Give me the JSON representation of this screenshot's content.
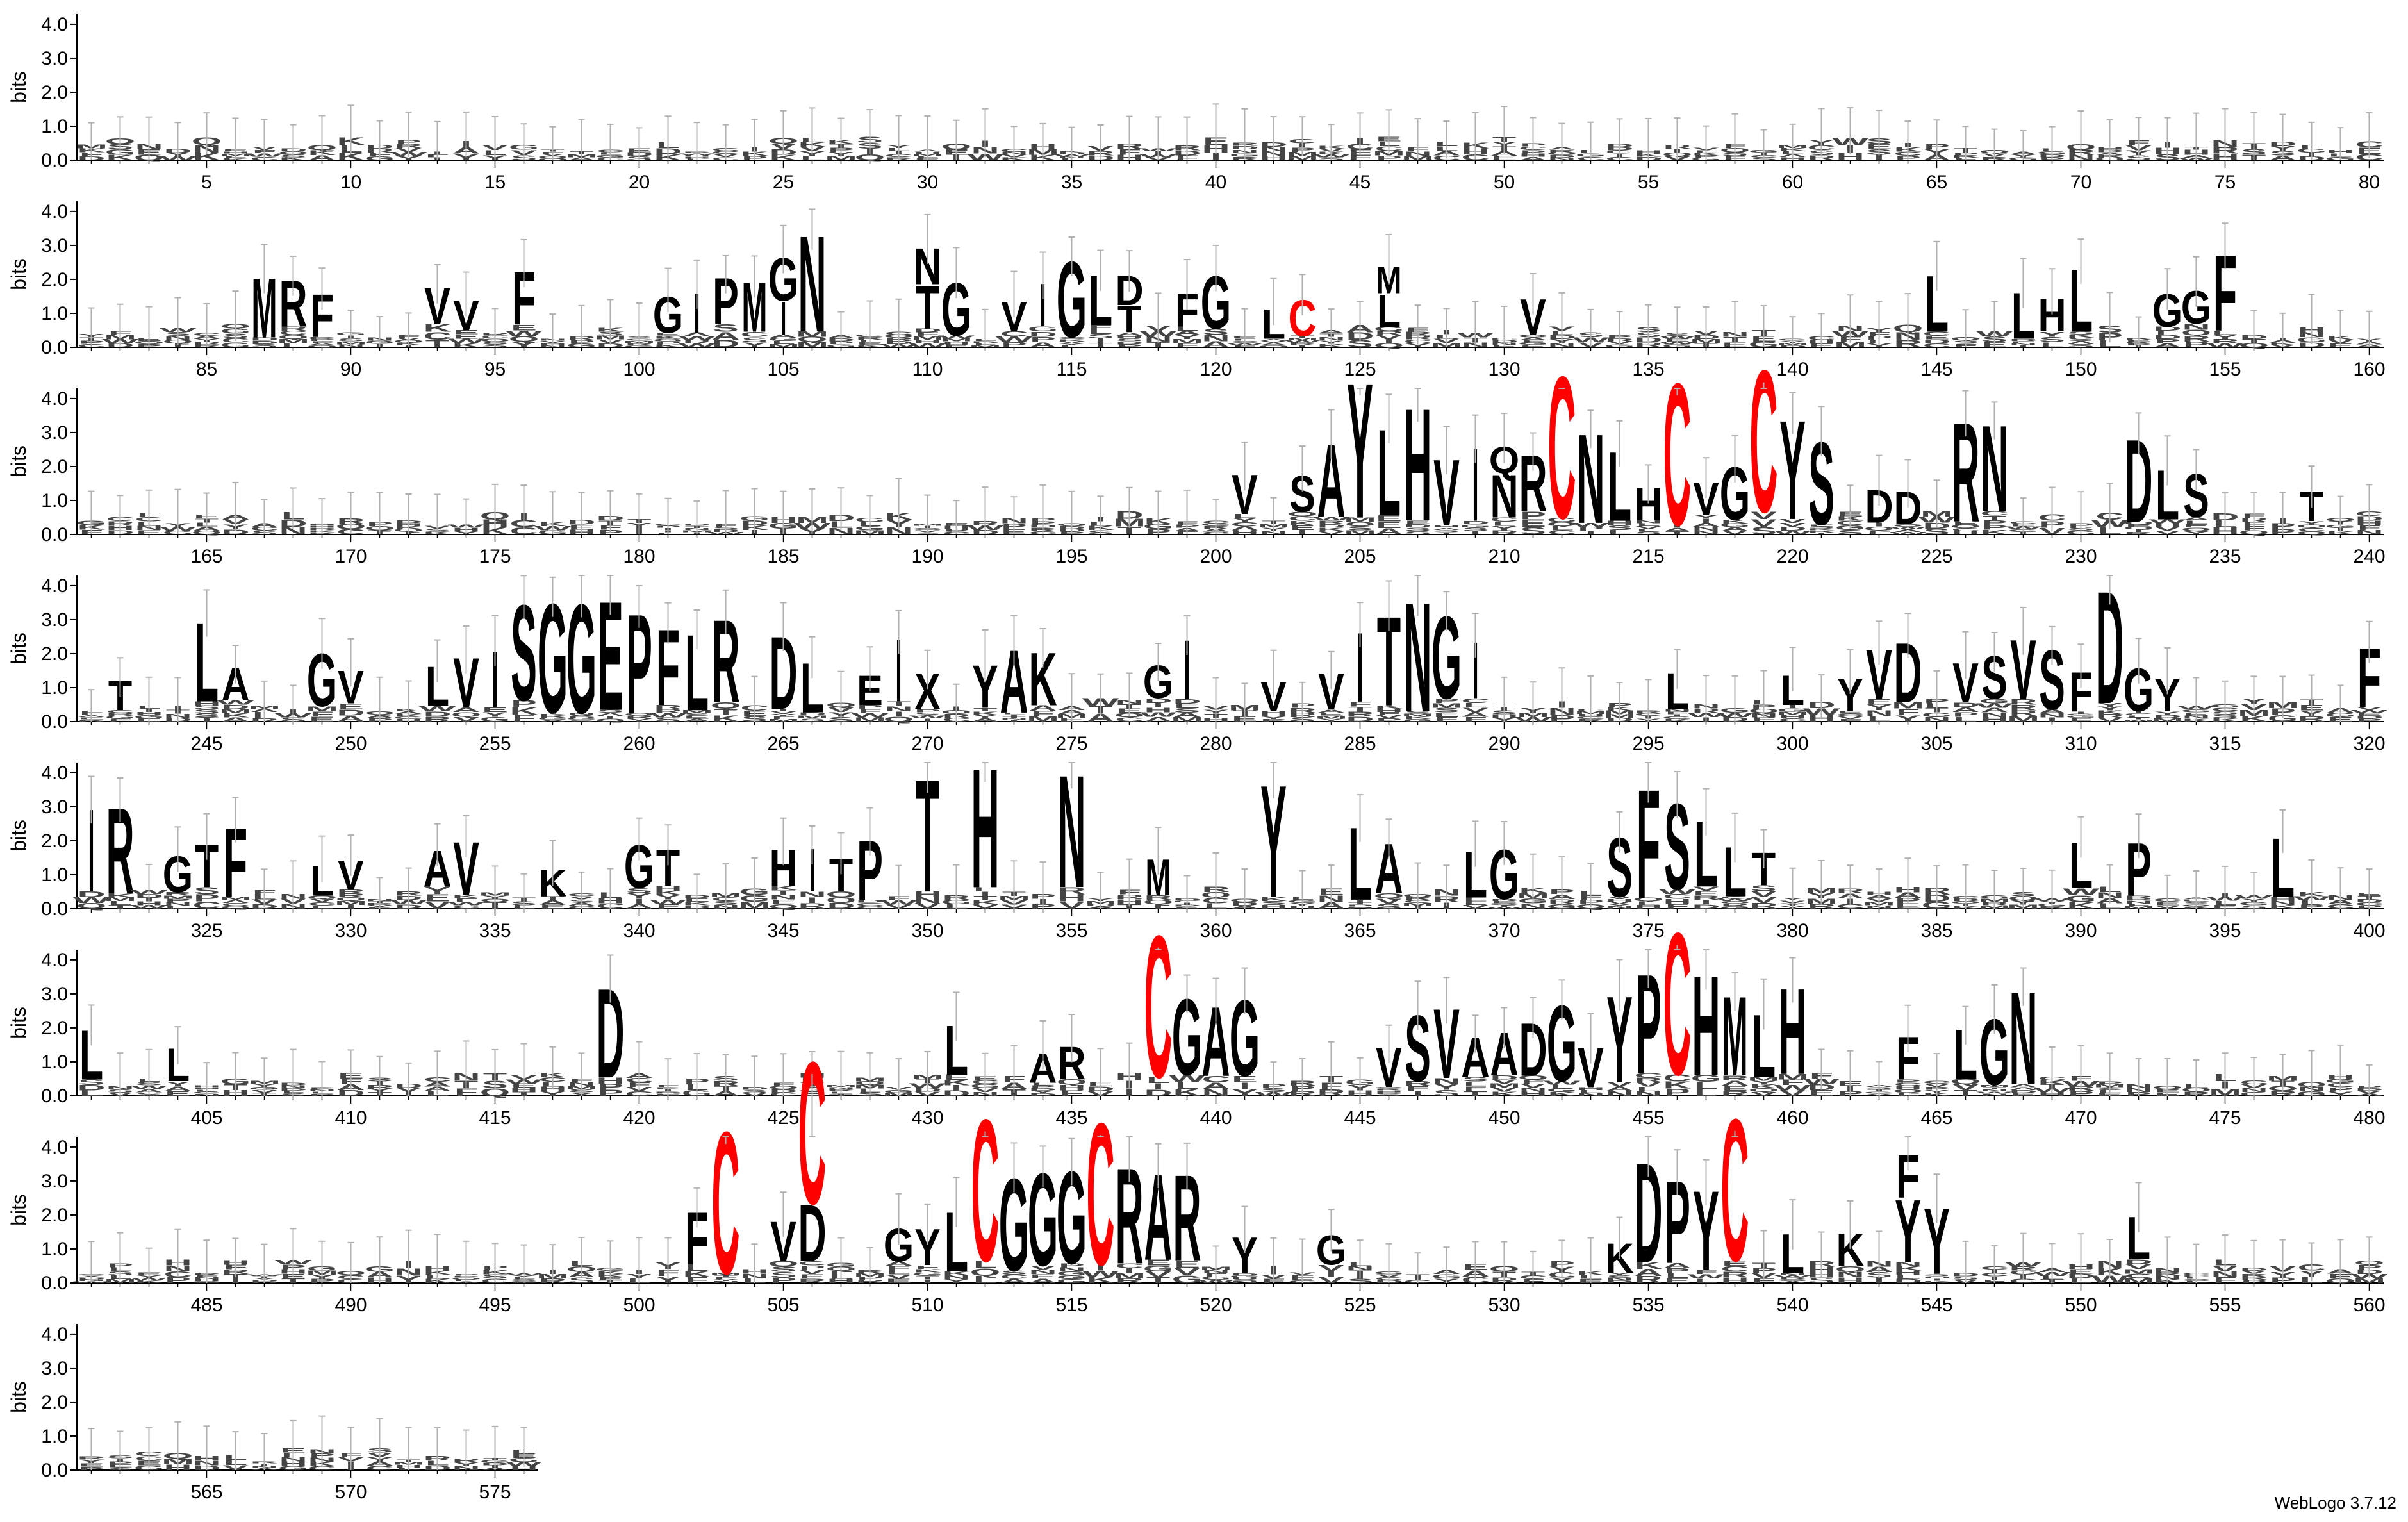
{
  "chart_data": {
    "type": "sequence-logo",
    "ylabel": "bits",
    "ylim": [
      0,
      4.3
    ],
    "yticks": [
      "0.0",
      "1.0",
      "2.0",
      "3.0",
      "4.0"
    ],
    "positions_per_row": 80,
    "total_positions": 576,
    "xtick_step": 5,
    "colors": {
      "default": "#000000",
      "cysteine": "#ff0000",
      "errorbar": "#b0b0b0"
    },
    "columns": [
      {
        "pos": 87,
        "letter": "M",
        "height": 1.8
      },
      {
        "pos": 88,
        "letter": "R",
        "height": 1.4
      },
      {
        "pos": 89,
        "letter": "F",
        "height": 1.3
      },
      {
        "pos": 93,
        "letter": "V",
        "height": 1.1
      },
      {
        "pos": 94,
        "letter": "V",
        "height": 0.9
      },
      {
        "pos": 96,
        "letter": "F",
        "height": 1.6
      },
      {
        "pos": 101,
        "letter": "G",
        "height": 1.1
      },
      {
        "pos": 102,
        "letter": "I",
        "height": 1.2
      },
      {
        "pos": 103,
        "letter": "P",
        "height": 1.4
      },
      {
        "pos": 104,
        "letter": "M",
        "height": 1.5
      },
      {
        "pos": 105,
        "letter": "I",
        "height": 1.0
      },
      {
        "pos": 105,
        "letter": "G",
        "height": 1.3
      },
      {
        "pos": 106,
        "letter": "N",
        "height": 2.9
      },
      {
        "pos": 110,
        "letter": "T",
        "height": 1.3
      },
      {
        "pos": 110,
        "letter": "N",
        "height": 1.1
      },
      {
        "pos": 111,
        "letter": "G",
        "height": 1.6
      },
      {
        "pos": 113,
        "letter": "V",
        "height": 0.9
      },
      {
        "pos": 114,
        "letter": "I",
        "height": 1.3
      },
      {
        "pos": 115,
        "letter": "G",
        "height": 2.3
      },
      {
        "pos": 116,
        "letter": "L",
        "height": 1.5
      },
      {
        "pos": 117,
        "letter": "T",
        "height": 0.8
      },
      {
        "pos": 117,
        "letter": "D",
        "height": 0.9
      },
      {
        "pos": 119,
        "letter": "F",
        "height": 1.0
      },
      {
        "pos": 120,
        "letter": "G",
        "height": 1.6
      },
      {
        "pos": 122,
        "letter": "L",
        "height": 0.9
      },
      {
        "pos": 123,
        "letter": "C",
        "height": 1.1,
        "cys": true
      },
      {
        "pos": 126,
        "letter": "L",
        "height": 1.0
      },
      {
        "pos": 126,
        "letter": "M",
        "height": 0.8
      },
      {
        "pos": 131,
        "letter": "V",
        "height": 1.1
      },
      {
        "pos": 145,
        "letter": "L",
        "height": 1.7
      },
      {
        "pos": 148,
        "letter": "L",
        "height": 1.4
      },
      {
        "pos": 149,
        "letter": "H",
        "height": 1.0
      },
      {
        "pos": 150,
        "letter": "L",
        "height": 1.9
      },
      {
        "pos": 153,
        "letter": "G",
        "height": 1.0
      },
      {
        "pos": 154,
        "letter": "G",
        "height": 1.0
      },
      {
        "pos": 155,
        "letter": "F",
        "height": 2.3
      },
      {
        "pos": 201,
        "letter": "V",
        "height": 1.2
      },
      {
        "pos": 203,
        "letter": "S",
        "height": 1.1
      },
      {
        "pos": 204,
        "letter": "A",
        "height": 2.2
      },
      {
        "pos": 205,
        "letter": "Y",
        "height": 4.1
      },
      {
        "pos": 206,
        "letter": "L",
        "height": 2.6
      },
      {
        "pos": 207,
        "letter": "H",
        "height": 3.4
      },
      {
        "pos": 208,
        "letter": "V",
        "height": 2.0
      },
      {
        "pos": 209,
        "letter": "I",
        "height": 2.2
      },
      {
        "pos": 210,
        "letter": "N",
        "height": 1.3
      },
      {
        "pos": 210,
        "letter": "Q",
        "height": 0.8
      },
      {
        "pos": 211,
        "letter": "R",
        "height": 1.7
      },
      {
        "pos": 212,
        "letter": "C",
        "height": 4.3,
        "cys": true
      },
      {
        "pos": 213,
        "letter": "N",
        "height": 2.7
      },
      {
        "pos": 214,
        "letter": "L",
        "height": 2.1
      },
      {
        "pos": 215,
        "letter": "H",
        "height": 1.0
      },
      {
        "pos": 216,
        "letter": "C",
        "height": 4.3,
        "cys": true
      },
      {
        "pos": 217,
        "letter": "V",
        "height": 1.0
      },
      {
        "pos": 218,
        "letter": "G",
        "height": 1.6
      },
      {
        "pos": 219,
        "letter": "C",
        "height": 4.3,
        "cys": true
      },
      {
        "pos": 220,
        "letter": "Y",
        "height": 3.0
      },
      {
        "pos": 221,
        "letter": "S",
        "height": 2.5
      },
      {
        "pos": 223,
        "letter": "D",
        "height": 1.0
      },
      {
        "pos": 224,
        "letter": "D",
        "height": 1.0
      },
      {
        "pos": 226,
        "letter": "R",
        "height": 3.0
      },
      {
        "pos": 227,
        "letter": "N",
        "height": 2.6
      },
      {
        "pos": 232,
        "letter": "D",
        "height": 2.5
      },
      {
        "pos": 233,
        "letter": "L",
        "height": 1.5
      },
      {
        "pos": 234,
        "letter": "S",
        "height": 1.3
      },
      {
        "pos": 238,
        "letter": "T",
        "height": 0.9
      },
      {
        "pos": 242,
        "letter": "T",
        "height": 0.9
      },
      {
        "pos": 245,
        "letter": "L",
        "height": 2.4
      },
      {
        "pos": 246,
        "letter": "A",
        "height": 1.0
      },
      {
        "pos": 249,
        "letter": "G",
        "height": 1.6
      },
      {
        "pos": 250,
        "letter": "V",
        "height": 1.0
      },
      {
        "pos": 253,
        "letter": "L",
        "height": 1.2
      },
      {
        "pos": 254,
        "letter": "V",
        "height": 1.5
      },
      {
        "pos": 255,
        "letter": "I",
        "height": 1.7
      },
      {
        "pos": 256,
        "letter": "S",
        "height": 2.9
      },
      {
        "pos": 257,
        "letter": "G",
        "height": 3.3
      },
      {
        "pos": 258,
        "letter": "G",
        "height": 3.3
      },
      {
        "pos": 259,
        "letter": "E",
        "height": 3.3
      },
      {
        "pos": 260,
        "letter": "P",
        "height": 3.0
      },
      {
        "pos": 261,
        "letter": "F",
        "height": 2.3
      },
      {
        "pos": 262,
        "letter": "L",
        "height": 2.3
      },
      {
        "pos": 263,
        "letter": "R",
        "height": 2.5
      },
      {
        "pos": 265,
        "letter": "D",
        "height": 2.2
      },
      {
        "pos": 266,
        "letter": "L",
        "height": 1.5
      },
      {
        "pos": 268,
        "letter": "E",
        "height": 0.9
      },
      {
        "pos": 269,
        "letter": "I",
        "height": 1.9
      },
      {
        "pos": 270,
        "letter": "X",
        "height": 1.1
      },
      {
        "pos": 272,
        "letter": "Y",
        "height": 1.3
      },
      {
        "pos": 273,
        "letter": "A",
        "height": 1.9
      },
      {
        "pos": 274,
        "letter": "K",
        "height": 1.6
      },
      {
        "pos": 278,
        "letter": "G",
        "height": 1.0
      },
      {
        "pos": 279,
        "letter": "I",
        "height": 1.8
      },
      {
        "pos": 282,
        "letter": "V",
        "height": 0.9
      },
      {
        "pos": 284,
        "letter": "V",
        "height": 1.1
      },
      {
        "pos": 285,
        "letter": "I",
        "height": 2.1
      },
      {
        "pos": 286,
        "letter": "T",
        "height": 2.7
      },
      {
        "pos": 287,
        "letter": "N",
        "height": 3.3
      },
      {
        "pos": 288,
        "letter": "G",
        "height": 2.5
      },
      {
        "pos": 289,
        "letter": "I",
        "height": 1.7
      },
      {
        "pos": 296,
        "letter": "L",
        "height": 1.1
      },
      {
        "pos": 300,
        "letter": "L",
        "height": 0.9
      },
      {
        "pos": 302,
        "letter": "Y",
        "height": 1.0
      },
      {
        "pos": 303,
        "letter": "V",
        "height": 1.5
      },
      {
        "pos": 304,
        "letter": "D",
        "height": 1.8
      },
      {
        "pos": 306,
        "letter": "V",
        "height": 1.2
      },
      {
        "pos": 307,
        "letter": "S",
        "height": 1.3
      },
      {
        "pos": 308,
        "letter": "V",
        "height": 1.8
      },
      {
        "pos": 309,
        "letter": "S",
        "height": 1.8
      },
      {
        "pos": 310,
        "letter": "F",
        "height": 1.2
      },
      {
        "pos": 311,
        "letter": "D",
        "height": 3.4
      },
      {
        "pos": 312,
        "letter": "G",
        "height": 1.3
      },
      {
        "pos": 313,
        "letter": "Y",
        "height": 1.0
      },
      {
        "pos": 320,
        "letter": "F",
        "height": 1.8
      },
      {
        "pos": 321,
        "letter": "I",
        "height": 2.5
      },
      {
        "pos": 322,
        "letter": "R",
        "height": 2.6
      },
      {
        "pos": 324,
        "letter": "G",
        "height": 1.1
      },
      {
        "pos": 325,
        "letter": "T",
        "height": 1.3
      },
      {
        "pos": 326,
        "letter": "F",
        "height": 2.1
      },
      {
        "pos": 329,
        "letter": "L",
        "height": 0.9
      },
      {
        "pos": 330,
        "letter": "V",
        "height": 0.9
      },
      {
        "pos": 333,
        "letter": "A",
        "height": 1.1
      },
      {
        "pos": 334,
        "letter": "V",
        "height": 1.6
      },
      {
        "pos": 337,
        "letter": "K",
        "height": 0.8
      },
      {
        "pos": 340,
        "letter": "G",
        "height": 1.3
      },
      {
        "pos": 341,
        "letter": "T",
        "height": 1.1
      },
      {
        "pos": 345,
        "letter": "H",
        "height": 1.1
      },
      {
        "pos": 346,
        "letter": "I",
        "height": 1.3
      },
      {
        "pos": 347,
        "letter": "T",
        "height": 1.0
      },
      {
        "pos": 348,
        "letter": "P",
        "height": 1.8
      },
      {
        "pos": 350,
        "letter": "T",
        "height": 3.4
      },
      {
        "pos": 352,
        "letter": "H",
        "height": 3.6
      },
      {
        "pos": 355,
        "letter": "N",
        "height": 3.4
      },
      {
        "pos": 358,
        "letter": "M",
        "height": 1.1
      },
      {
        "pos": 362,
        "letter": "Y",
        "height": 3.4
      },
      {
        "pos": 365,
        "letter": "L",
        "height": 2.2
      },
      {
        "pos": 366,
        "letter": "A",
        "height": 1.5
      },
      {
        "pos": 369,
        "letter": "L",
        "height": 1.4
      },
      {
        "pos": 370,
        "letter": "G",
        "height": 1.5
      },
      {
        "pos": 374,
        "letter": "S",
        "height": 1.8
      },
      {
        "pos": 375,
        "letter": "F",
        "height": 3.3
      },
      {
        "pos": 376,
        "letter": "S",
        "height": 2.6
      },
      {
        "pos": 377,
        "letter": "L",
        "height": 2.0
      },
      {
        "pos": 378,
        "letter": "L",
        "height": 1.5
      },
      {
        "pos": 379,
        "letter": "T",
        "height": 1.0
      },
      {
        "pos": 390,
        "letter": "L",
        "height": 1.4
      },
      {
        "pos": 392,
        "letter": "P",
        "height": 1.6
      },
      {
        "pos": 397,
        "letter": "L",
        "height": 1.8
      },
      {
        "pos": 401,
        "letter": "L",
        "height": 1.5
      },
      {
        "pos": 404,
        "letter": "L",
        "height": 1.0
      },
      {
        "pos": 419,
        "letter": "D",
        "height": 2.7
      },
      {
        "pos": 431,
        "letter": "L",
        "height": 1.5
      },
      {
        "pos": 434,
        "letter": "A",
        "height": 0.9
      },
      {
        "pos": 435,
        "letter": "R",
        "height": 1.0
      },
      {
        "pos": 438,
        "letter": "C",
        "height": 4.3,
        "cys": true
      },
      {
        "pos": 439,
        "letter": "G",
        "height": 2.3
      },
      {
        "pos": 440,
        "letter": "A",
        "height": 2.1
      },
      {
        "pos": 441,
        "letter": "G",
        "height": 2.3
      },
      {
        "pos": 446,
        "letter": "V",
        "height": 1.2
      },
      {
        "pos": 447,
        "letter": "S",
        "height": 2.0
      },
      {
        "pos": 448,
        "letter": "V",
        "height": 2.1
      },
      {
        "pos": 449,
        "letter": "A",
        "height": 1.2
      },
      {
        "pos": 450,
        "letter": "A",
        "height": 1.3
      },
      {
        "pos": 451,
        "letter": "D",
        "height": 1.6
      },
      {
        "pos": 452,
        "letter": "G",
        "height": 2.3
      },
      {
        "pos": 453,
        "letter": "V",
        "height": 1.2
      },
      {
        "pos": 454,
        "letter": "Y",
        "height": 2.6
      },
      {
        "pos": 455,
        "letter": "P",
        "height": 3.0
      },
      {
        "pos": 456,
        "letter": "C",
        "height": 4.3,
        "cys": true
      },
      {
        "pos": 457,
        "letter": "H",
        "height": 3.0
      },
      {
        "pos": 458,
        "letter": "M",
        "height": 2.4
      },
      {
        "pos": 459,
        "letter": "L",
        "height": 1.9
      },
      {
        "pos": 460,
        "letter": "H",
        "height": 2.6
      },
      {
        "pos": 464,
        "letter": "F",
        "height": 1.3
      },
      {
        "pos": 466,
        "letter": "L",
        "height": 1.5
      },
      {
        "pos": 467,
        "letter": "G",
        "height": 2.0
      },
      {
        "pos": 468,
        "letter": "N",
        "height": 2.8
      },
      {
        "pos": 502,
        "letter": "F",
        "height": 1.6
      },
      {
        "pos": 505,
        "letter": "V",
        "height": 1.2
      },
      {
        "pos": 506,
        "letter": "D",
        "height": 1.7
      },
      {
        "pos": 509,
        "letter": "G",
        "height": 1.0
      },
      {
        "pos": 503,
        "letter": "C",
        "height": 4.3,
        "cys": true
      },
      {
        "pos": 506,
        "letter": "C",
        "height": 4.3,
        "cys": true
      },
      {
        "pos": 510,
        "letter": "Y",
        "height": 1.1
      },
      {
        "pos": 511,
        "letter": "L",
        "height": 1.8
      },
      {
        "pos": 512,
        "letter": "C",
        "height": 4.3,
        "cys": true
      },
      {
        "pos": 513,
        "letter": "G",
        "height": 2.8
      },
      {
        "pos": 514,
        "letter": "G",
        "height": 2.8
      },
      {
        "pos": 515,
        "letter": "G",
        "height": 2.8
      },
      {
        "pos": 516,
        "letter": "C",
        "height": 4.3,
        "cys": true
      },
      {
        "pos": 517,
        "letter": "R",
        "height": 2.9
      },
      {
        "pos": 518,
        "letter": "A",
        "height": 2.6
      },
      {
        "pos": 519,
        "letter": "R",
        "height": 2.6
      },
      {
        "pos": 521,
        "letter": "Y",
        "height": 1.1
      },
      {
        "pos": 524,
        "letter": "G",
        "height": 0.9
      },
      {
        "pos": 534,
        "letter": "K",
        "height": 0.9
      },
      {
        "pos": 535,
        "letter": "D",
        "height": 3.0
      },
      {
        "pos": 536,
        "letter": "P",
        "height": 2.5
      },
      {
        "pos": 537,
        "letter": "Y",
        "height": 2.4
      },
      {
        "pos": 538,
        "letter": "C",
        "height": 4.3,
        "cys": true
      },
      {
        "pos": 540,
        "letter": "L",
        "height": 1.2
      },
      {
        "pos": 542,
        "letter": "K",
        "height": 1.0
      },
      {
        "pos": 544,
        "letter": "Y",
        "height": 1.9
      },
      {
        "pos": 545,
        "letter": "Y",
        "height": 2.0
      },
      {
        "pos": 544,
        "letter": "F",
        "height": 1.3
      },
      {
        "pos": 552,
        "letter": "L",
        "height": 1.3
      }
    ],
    "noise_letters": [
      "A",
      "C",
      "D",
      "E",
      "F",
      "G",
      "H",
      "I",
      "K",
      "L",
      "M",
      "N",
      "P",
      "Q",
      "R",
      "S",
      "T",
      "V",
      "W",
      "Y"
    ]
  },
  "credit": "WebLogo 3.7.12"
}
